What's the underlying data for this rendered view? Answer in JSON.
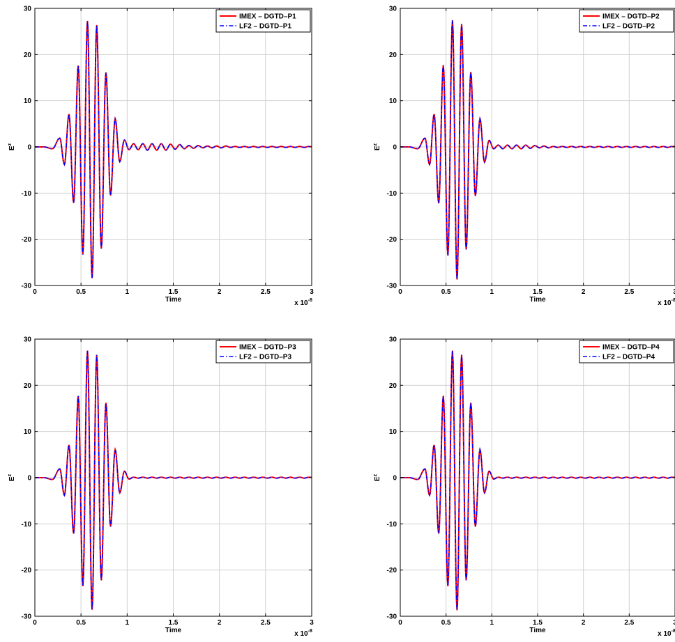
{
  "chart_data": [
    {
      "type": "line",
      "xlabel": "Time",
      "ylabel": "E",
      "ylabel_sup": "z",
      "x_exponent_base": "x 10",
      "x_exponent_power": "-8",
      "xlim": [
        0,
        3
      ],
      "ylim": [
        -30,
        30
      ],
      "xticks": [
        0,
        0.5,
        1,
        1.5,
        2,
        2.5,
        3
      ],
      "xtick_labels": [
        "0",
        "0.5",
        "1",
        "1.5",
        "2",
        "2.5",
        "3"
      ],
      "yticks": [
        -30,
        -20,
        -10,
        0,
        10,
        20,
        30
      ],
      "ytick_labels": [
        "-30",
        "-20",
        "-10",
        "0",
        "10",
        "20",
        "30"
      ],
      "grid": true,
      "legend_position": "top-right",
      "series": [
        {
          "name": "IMEX – DGTD–P1",
          "color": "#ff0000",
          "style": "solid"
        },
        {
          "name": "LF2 – DGTD–P1",
          "color": "#0000ff",
          "style": "dashdot"
        }
      ],
      "peaks": {
        "x": [
          0.02,
          0.1,
          0.19,
          0.27,
          0.32,
          0.37,
          0.42,
          0.47,
          0.52,
          0.57,
          0.62,
          0.67,
          0.72,
          0.77,
          0.82,
          0.87,
          0.92,
          0.97,
          1.02,
          1.07,
          1.12,
          1.17,
          1.22,
          1.27,
          1.32,
          1.37,
          1.42,
          1.47,
          1.52,
          1.57,
          1.62,
          1.67,
          1.72,
          1.77,
          1.82,
          1.87,
          1.92,
          1.97,
          2.02,
          2.07,
          2.12,
          2.17,
          2.22,
          2.27,
          2.32,
          2.37,
          2.42,
          2.47,
          2.52,
          2.57,
          2.62,
          2.67,
          2.72,
          2.77,
          2.82,
          2.87,
          2.92,
          2.97
        ],
        "y": [
          0,
          0,
          -0.4,
          1.9,
          -3.8,
          7.1,
          -12.1,
          17.6,
          -23.3,
          27.3,
          -28.4,
          26.4,
          -22.0,
          16.1,
          -10.5,
          6.1,
          -3.2,
          1.5,
          -0.6,
          0.7,
          -0.6,
          0.7,
          -0.7,
          0.7,
          -0.7,
          0.7,
          -0.7,
          0.6,
          -0.5,
          0.5,
          -0.4,
          0.3,
          -0.3,
          0.3,
          -0.2,
          0.2,
          -0.2,
          0.2,
          -0.2,
          0.2,
          -0.1,
          0.1,
          -0.1,
          0.1,
          -0.1,
          0.1,
          -0.1,
          0.1,
          -0.1,
          0.1,
          -0.1,
          0.1,
          -0.1,
          0.1,
          -0.1,
          0.1,
          -0.1,
          0.1
        ]
      }
    },
    {
      "type": "line",
      "xlabel": "Time",
      "ylabel": "E",
      "ylabel_sup": "z",
      "x_exponent_base": "x 10",
      "x_exponent_power": "-8",
      "xlim": [
        0,
        3
      ],
      "ylim": [
        -30,
        30
      ],
      "xticks": [
        0,
        0.5,
        1,
        1.5,
        2,
        2.5,
        3
      ],
      "xtick_labels": [
        "0",
        "0.5",
        "1",
        "1.5",
        "2",
        "2.5",
        "3"
      ],
      "yticks": [
        -30,
        -20,
        -10,
        0,
        10,
        20,
        30
      ],
      "ytick_labels": [
        "-30",
        "-20",
        "-10",
        "0",
        "10",
        "20",
        "30"
      ],
      "grid": true,
      "legend_position": "top-right",
      "series": [
        {
          "name": "IMEX – DGTD–P2",
          "color": "#ff0000",
          "style": "solid"
        },
        {
          "name": "LF2 – DGTD–P2",
          "color": "#0000ff",
          "style": "dashdot"
        }
      ],
      "peaks": {
        "x": [
          0.02,
          0.1,
          0.19,
          0.27,
          0.32,
          0.37,
          0.42,
          0.47,
          0.52,
          0.57,
          0.62,
          0.67,
          0.72,
          0.77,
          0.82,
          0.87,
          0.92,
          0.97,
          1.02,
          1.07,
          1.12,
          1.17,
          1.22,
          1.27,
          1.32,
          1.37,
          1.42,
          1.47,
          1.52,
          1.57,
          1.62,
          1.67,
          1.72,
          1.77,
          1.82,
          1.87,
          1.92,
          1.97,
          2.02,
          2.07,
          2.12,
          2.17,
          2.22,
          2.27,
          2.32,
          2.37,
          2.42,
          2.47,
          2.52,
          2.57,
          2.62,
          2.67,
          2.72,
          2.77,
          2.82,
          2.87,
          2.92,
          2.97
        ],
        "y": [
          0,
          0,
          -0.4,
          1.9,
          -3.8,
          7.1,
          -12.2,
          17.7,
          -23.5,
          27.4,
          -28.7,
          26.6,
          -22.2,
          16.2,
          -10.6,
          6.1,
          -3.3,
          1.4,
          -0.4,
          0.4,
          -0.4,
          0.4,
          -0.4,
          0.4,
          -0.4,
          0.4,
          -0.3,
          0.3,
          -0.2,
          0.2,
          -0.2,
          0.1,
          -0.1,
          0.1,
          -0.1,
          0.1,
          -0.1,
          0.1,
          -0.1,
          0.1,
          -0.1,
          0.1,
          -0.1,
          0.1,
          -0.1,
          0.1,
          -0.1,
          0.1,
          -0.1,
          0.1,
          -0.1,
          0.1,
          -0.1,
          0.1,
          -0.1,
          0.1,
          -0.1,
          0.1
        ]
      }
    },
    {
      "type": "line",
      "xlabel": "Time",
      "ylabel": "E",
      "ylabel_sup": "z",
      "x_exponent_base": "x 10",
      "x_exponent_power": "-8",
      "xlim": [
        0,
        3
      ],
      "ylim": [
        -30,
        30
      ],
      "xticks": [
        0,
        0.5,
        1,
        1.5,
        2,
        2.5,
        3
      ],
      "xtick_labels": [
        "0",
        "0.5",
        "1",
        "1.5",
        "2",
        "2.5",
        "3"
      ],
      "yticks": [
        -30,
        -20,
        -10,
        0,
        10,
        20,
        30
      ],
      "ytick_labels": [
        "-30",
        "-20",
        "-10",
        "0",
        "10",
        "20",
        "30"
      ],
      "grid": true,
      "legend_position": "top-right",
      "series": [
        {
          "name": "IMEX – DGTD–P3",
          "color": "#ff0000",
          "style": "solid"
        },
        {
          "name": "LF2 – DGTD–P3",
          "color": "#0000ff",
          "style": "dashdot"
        }
      ],
      "peaks": {
        "x": [
          0.02,
          0.1,
          0.19,
          0.27,
          0.32,
          0.37,
          0.42,
          0.47,
          0.52,
          0.57,
          0.62,
          0.67,
          0.72,
          0.77,
          0.82,
          0.87,
          0.92,
          0.97,
          1.02,
          1.07,
          1.12,
          1.17,
          1.22,
          1.27,
          1.32,
          1.37,
          1.42,
          1.47,
          1.52,
          1.57,
          1.62,
          1.67,
          1.72,
          1.77,
          1.82,
          1.87,
          1.92,
          1.97,
          2.02,
          2.07,
          2.12,
          2.17,
          2.22,
          2.27,
          2.32,
          2.37,
          2.42,
          2.47,
          2.52,
          2.57,
          2.62,
          2.67,
          2.72,
          2.77,
          2.82,
          2.87,
          2.92,
          2.97
        ],
        "y": [
          0,
          0,
          -0.4,
          1.9,
          -3.8,
          7.1,
          -12.1,
          17.7,
          -23.5,
          27.5,
          -28.6,
          26.6,
          -22.2,
          16.2,
          -10.6,
          6.1,
          -3.3,
          1.4,
          -0.3,
          0.1,
          -0.1,
          0.1,
          -0.1,
          0.1,
          -0.1,
          0.1,
          -0.1,
          0.1,
          -0.1,
          0.1,
          -0.1,
          0.1,
          -0.1,
          0.1,
          -0.1,
          0.1,
          -0.1,
          0.1,
          -0.1,
          0.1,
          -0.1,
          0.1,
          -0.1,
          0.1,
          -0.1,
          0.1,
          -0.1,
          0.1,
          -0.1,
          0.1,
          -0.1,
          0.1,
          -0.1,
          0.1,
          -0.1,
          0.1,
          -0.1,
          0.1
        ]
      }
    },
    {
      "type": "line",
      "xlabel": "Time",
      "ylabel": "E",
      "ylabel_sup": "z",
      "x_exponent_base": "x 10",
      "x_exponent_power": "-8",
      "xlim": [
        0,
        3
      ],
      "ylim": [
        -30,
        30
      ],
      "xticks": [
        0,
        0.5,
        1,
        1.5,
        2,
        2.5,
        3
      ],
      "xtick_labels": [
        "0",
        "0.5",
        "1",
        "1.5",
        "2",
        "2.5",
        "3"
      ],
      "yticks": [
        -30,
        -20,
        -10,
        0,
        10,
        20,
        30
      ],
      "ytick_labels": [
        "-30",
        "-20",
        "-10",
        "0",
        "10",
        "20",
        "30"
      ],
      "grid": true,
      "legend_position": "top-right",
      "series": [
        {
          "name": "IMEX – DGTD–P4",
          "color": "#ff0000",
          "style": "solid"
        },
        {
          "name": "LF2 – DGTD–P4",
          "color": "#0000ff",
          "style": "dashdot"
        }
      ],
      "peaks": {
        "x": [
          0.02,
          0.1,
          0.19,
          0.27,
          0.32,
          0.37,
          0.42,
          0.47,
          0.52,
          0.57,
          0.62,
          0.67,
          0.72,
          0.77,
          0.82,
          0.87,
          0.92,
          0.97,
          1.02,
          1.07,
          1.12,
          1.17,
          1.22,
          1.27,
          1.32,
          1.37,
          1.42,
          1.47,
          1.52,
          1.57,
          1.62,
          1.67,
          1.72,
          1.77,
          1.82,
          1.87,
          1.92,
          1.97,
          2.02,
          2.07,
          2.12,
          2.17,
          2.22,
          2.27,
          2.32,
          2.37,
          2.42,
          2.47,
          2.52,
          2.57,
          2.62,
          2.67,
          2.72,
          2.77,
          2.82,
          2.87,
          2.92,
          2.97
        ],
        "y": [
          0,
          0,
          -0.4,
          1.9,
          -3.8,
          7.1,
          -12.1,
          17.7,
          -23.5,
          27.5,
          -28.7,
          26.6,
          -22.2,
          16.2,
          -10.6,
          6.1,
          -3.3,
          1.4,
          -0.3,
          0.1,
          -0.1,
          0.1,
          -0.1,
          0.1,
          -0.1,
          0.1,
          -0.1,
          0.1,
          -0.1,
          0.1,
          -0.1,
          0.1,
          -0.1,
          0.1,
          -0.1,
          0.1,
          -0.1,
          0.1,
          -0.1,
          0.1,
          -0.1,
          0.1,
          -0.1,
          0.1,
          -0.1,
          0.1,
          -0.1,
          0.1,
          -0.1,
          0.1,
          -0.1,
          0.1,
          -0.1,
          0.1,
          -0.1,
          0.1,
          -0.1,
          0.1
        ]
      }
    }
  ]
}
